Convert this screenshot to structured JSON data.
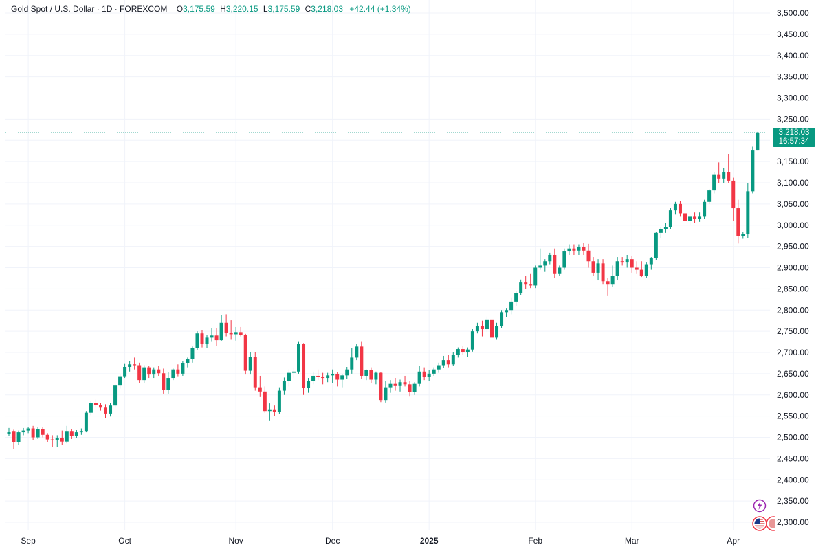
{
  "legend": {
    "symbol": "Gold Spot / U.S. Dollar · 1D · FOREXCOM",
    "o_label": "O",
    "o_value": "3,175.59",
    "h_label": "H",
    "h_value": "3,220.15",
    "l_label": "L",
    "l_value": "3,175.59",
    "c_label": "C",
    "c_value": "3,218.03",
    "change": "+42.44 (+1.34%)"
  },
  "price_tag": {
    "price": "3,218.03",
    "countdown": "16:57:34"
  },
  "colors": {
    "up": "#089981",
    "down": "#F23645",
    "grid": "#f0f3fa",
    "accent": "#089981"
  },
  "icons": {
    "lightning": "lightning-icon",
    "us_flag": "us-flag-icon"
  },
  "chart_data": {
    "type": "candlestick",
    "title": "Gold Spot / U.S. Dollar · 1D · FOREXCOM",
    "y_ticks": [
      "3,500.00",
      "3,450.00",
      "3,400.00",
      "3,350.00",
      "3,300.00",
      "3,250.00",
      "3,200.00",
      "3,150.00",
      "3,100.00",
      "3,050.00",
      "3,000.00",
      "2,950.00",
      "2,900.00",
      "2,850.00",
      "2,800.00",
      "2,750.00",
      "2,700.00",
      "2,650.00",
      "2,600.00",
      "2,550.00",
      "2,500.00",
      "2,450.00",
      "2,400.00",
      "2,350.00",
      "2,300.00"
    ],
    "y_tick_values": [
      3500,
      3450,
      3400,
      3350,
      3300,
      3250,
      3200,
      3150,
      3100,
      3050,
      3000,
      2950,
      2900,
      2850,
      2800,
      2750,
      2700,
      2650,
      2600,
      2550,
      2500,
      2450,
      2400,
      2350,
      2300
    ],
    "ylim": [
      2285,
      3515
    ],
    "x_labels": [
      {
        "label": "Sep",
        "bar": 4,
        "bold": false
      },
      {
        "label": "Oct",
        "bar": 24,
        "bold": false
      },
      {
        "label": "Nov",
        "bar": 47,
        "bold": false
      },
      {
        "label": "Dec",
        "bar": 67,
        "bold": false
      },
      {
        "label": "2025",
        "bar": 87,
        "bold": true
      },
      {
        "label": "Feb",
        "bar": 109,
        "bold": false
      },
      {
        "label": "Mar",
        "bar": 129,
        "bold": false
      },
      {
        "label": "Apr",
        "bar": 150,
        "bold": false
      }
    ],
    "last_price": 3218.03,
    "candles": [
      [
        2508,
        2522,
        2503,
        2513
      ],
      [
        2515,
        2518,
        2473,
        2488
      ],
      [
        2488,
        2516,
        2482,
        2512
      ],
      [
        2512,
        2522,
        2505,
        2516
      ],
      [
        2516,
        2525,
        2510,
        2521
      ],
      [
        2521,
        2527,
        2494,
        2500
      ],
      [
        2500,
        2524,
        2496,
        2519
      ],
      [
        2519,
        2524,
        2500,
        2506
      ],
      [
        2506,
        2510,
        2488,
        2495
      ],
      [
        2495,
        2505,
        2478,
        2493
      ],
      [
        2493,
        2505,
        2477,
        2499
      ],
      [
        2499,
        2516,
        2483,
        2490
      ],
      [
        2490,
        2527,
        2486,
        2515
      ],
      [
        2515,
        2519,
        2496,
        2503
      ],
      [
        2503,
        2517,
        2498,
        2512
      ],
      [
        2512,
        2521,
        2506,
        2515
      ],
      [
        2515,
        2562,
        2512,
        2558
      ],
      [
        2558,
        2585,
        2552,
        2581
      ],
      [
        2581,
        2589,
        2570,
        2576
      ],
      [
        2576,
        2581,
        2563,
        2570
      ],
      [
        2570,
        2578,
        2546,
        2556
      ],
      [
        2556,
        2581,
        2549,
        2575
      ],
      [
        2575,
        2625,
        2570,
        2622
      ],
      [
        2622,
        2648,
        2615,
        2644
      ],
      [
        2644,
        2673,
        2640,
        2666
      ],
      [
        2666,
        2680,
        2655,
        2672
      ],
      [
        2672,
        2688,
        2660,
        2670
      ],
      [
        2670,
        2676,
        2628,
        2635
      ],
      [
        2635,
        2670,
        2628,
        2665
      ],
      [
        2665,
        2668,
        2640,
        2648
      ],
      [
        2648,
        2665,
        2640,
        2660
      ],
      [
        2660,
        2668,
        2645,
        2651
      ],
      [
        2651,
        2662,
        2603,
        2612
      ],
      [
        2612,
        2653,
        2603,
        2640
      ],
      [
        2640,
        2662,
        2635,
        2660
      ],
      [
        2660,
        2672,
        2644,
        2650
      ],
      [
        2650,
        2679,
        2645,
        2675
      ],
      [
        2675,
        2688,
        2665,
        2684
      ],
      [
        2684,
        2714,
        2676,
        2710
      ],
      [
        2710,
        2750,
        2706,
        2745
      ],
      [
        2745,
        2752,
        2712,
        2720
      ],
      [
        2720,
        2742,
        2710,
        2735
      ],
      [
        2735,
        2758,
        2725,
        2740
      ],
      [
        2740,
        2758,
        2716,
        2729
      ],
      [
        2729,
        2788,
        2726,
        2770
      ],
      [
        2770,
        2790,
        2738,
        2747
      ],
      [
        2747,
        2776,
        2730,
        2743
      ],
      [
        2743,
        2760,
        2728,
        2748
      ],
      [
        2748,
        2760,
        2738,
        2742
      ],
      [
        2742,
        2744,
        2648,
        2657
      ],
      [
        2657,
        2700,
        2648,
        2690
      ],
      [
        2690,
        2701,
        2610,
        2618
      ],
      [
        2618,
        2645,
        2595,
        2608
      ],
      [
        2608,
        2620,
        2558,
        2562
      ],
      [
        2562,
        2580,
        2540,
        2566
      ],
      [
        2566,
        2575,
        2550,
        2560
      ],
      [
        2560,
        2618,
        2555,
        2610
      ],
      [
        2610,
        2641,
        2600,
        2632
      ],
      [
        2632,
        2660,
        2620,
        2652
      ],
      [
        2652,
        2665,
        2640,
        2655
      ],
      [
        2655,
        2725,
        2650,
        2720
      ],
      [
        2720,
        2722,
        2600,
        2616
      ],
      [
        2616,
        2640,
        2605,
        2633
      ],
      [
        2633,
        2655,
        2625,
        2645
      ],
      [
        2645,
        2660,
        2635,
        2642
      ],
      [
        2642,
        2652,
        2625,
        2640
      ],
      [
        2640,
        2652,
        2630,
        2646
      ],
      [
        2646,
        2660,
        2628,
        2649
      ],
      [
        2649,
        2654,
        2620,
        2636
      ],
      [
        2636,
        2648,
        2618,
        2646
      ],
      [
        2646,
        2666,
        2638,
        2660
      ],
      [
        2660,
        2710,
        2650,
        2688
      ],
      [
        2688,
        2720,
        2682,
        2714
      ],
      [
        2714,
        2725,
        2638,
        2645
      ],
      [
        2645,
        2660,
        2635,
        2658
      ],
      [
        2658,
        2665,
        2628,
        2636
      ],
      [
        2636,
        2655,
        2625,
        2652
      ],
      [
        2652,
        2654,
        2583,
        2588
      ],
      [
        2588,
        2632,
        2582,
        2618
      ],
      [
        2618,
        2635,
        2605,
        2626
      ],
      [
        2626,
        2640,
        2610,
        2621
      ],
      [
        2621,
        2636,
        2608,
        2630
      ],
      [
        2630,
        2645,
        2620,
        2625
      ],
      [
        2625,
        2632,
        2596,
        2607
      ],
      [
        2607,
        2630,
        2600,
        2626
      ],
      [
        2626,
        2668,
        2620,
        2655
      ],
      [
        2655,
        2665,
        2635,
        2642
      ],
      [
        2642,
        2658,
        2632,
        2650
      ],
      [
        2650,
        2665,
        2645,
        2660
      ],
      [
        2660,
        2676,
        2652,
        2670
      ],
      [
        2670,
        2692,
        2664,
        2682
      ],
      [
        2682,
        2695,
        2665,
        2672
      ],
      [
        2672,
        2700,
        2668,
        2695
      ],
      [
        2695,
        2712,
        2688,
        2708
      ],
      [
        2708,
        2716,
        2695,
        2701
      ],
      [
        2701,
        2712,
        2690,
        2707
      ],
      [
        2707,
        2755,
        2702,
        2750
      ],
      [
        2750,
        2770,
        2745,
        2763
      ],
      [
        2763,
        2775,
        2738,
        2755
      ],
      [
        2755,
        2785,
        2748,
        2778
      ],
      [
        2778,
        2790,
        2730,
        2735
      ],
      [
        2735,
        2770,
        2730,
        2762
      ],
      [
        2762,
        2800,
        2758,
        2795
      ],
      [
        2795,
        2805,
        2783,
        2800
      ],
      [
        2800,
        2830,
        2790,
        2820
      ],
      [
        2820,
        2845,
        2810,
        2840
      ],
      [
        2840,
        2872,
        2835,
        2865
      ],
      [
        2865,
        2880,
        2850,
        2860
      ],
      [
        2860,
        2885,
        2852,
        2858
      ],
      [
        2858,
        2905,
        2852,
        2900
      ],
      [
        2900,
        2945,
        2895,
        2905
      ],
      [
        2905,
        2920,
        2890,
        2915
      ],
      [
        2915,
        2935,
        2908,
        2930
      ],
      [
        2930,
        2945,
        2875,
        2885
      ],
      [
        2885,
        2905,
        2880,
        2900
      ],
      [
        2900,
        2945,
        2895,
        2938
      ],
      [
        2938,
        2955,
        2930,
        2945
      ],
      [
        2945,
        2955,
        2930,
        2940
      ],
      [
        2940,
        2955,
        2930,
        2948
      ],
      [
        2948,
        2958,
        2930,
        2940
      ],
      [
        2940,
        2956,
        2900,
        2915
      ],
      [
        2915,
        2925,
        2880,
        2888
      ],
      [
        2888,
        2920,
        2870,
        2910
      ],
      [
        2910,
        2920,
        2860,
        2868
      ],
      [
        2868,
        2875,
        2833,
        2860
      ],
      [
        2860,
        2905,
        2855,
        2880
      ],
      [
        2880,
        2925,
        2870,
        2915
      ],
      [
        2915,
        2925,
        2905,
        2912
      ],
      [
        2912,
        2930,
        2900,
        2920
      ],
      [
        2920,
        2928,
        2888,
        2900
      ],
      [
        2900,
        2915,
        2885,
        2895
      ],
      [
        2895,
        2915,
        2878,
        2880
      ],
      [
        2880,
        2912,
        2875,
        2908
      ],
      [
        2908,
        2925,
        2895,
        2922
      ],
      [
        2922,
        2985,
        2918,
        2982
      ],
      [
        2982,
        2995,
        2970,
        2990
      ],
      [
        2990,
        3005,
        2982,
        2995
      ],
      [
        2995,
        3040,
        2990,
        3035
      ],
      [
        3035,
        3055,
        3025,
        3050
      ],
      [
        3050,
        3057,
        3020,
        3028
      ],
      [
        3028,
        3035,
        3005,
        3010
      ],
      [
        3010,
        3025,
        3000,
        3020
      ],
      [
        3020,
        3030,
        3005,
        3015
      ],
      [
        3015,
        3030,
        3008,
        3020
      ],
      [
        3020,
        3060,
        3015,
        3055
      ],
      [
        3055,
        3085,
        3050,
        3082
      ],
      [
        3082,
        3125,
        3075,
        3120
      ],
      [
        3120,
        3148,
        3100,
        3110
      ],
      [
        3110,
        3135,
        3100,
        3125
      ],
      [
        3125,
        3168,
        3100,
        3105
      ],
      [
        3105,
        3112,
        3010,
        3040
      ],
      [
        3040,
        3060,
        2957,
        2975
      ],
      [
        2975,
        2985,
        2968,
        2980
      ],
      [
        2980,
        3100,
        2970,
        3080
      ],
      [
        3080,
        3185,
        3075,
        3176
      ],
      [
        3176,
        3220,
        3176,
        3218
      ]
    ]
  }
}
